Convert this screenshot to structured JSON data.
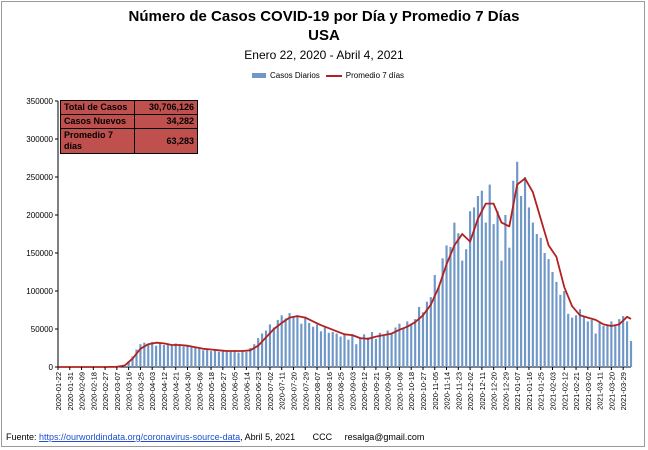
{
  "title": "Número de  Casos  COVID-19 por Día y Promedio 7 Días",
  "title2": "USA",
  "subtitle": "Enero 22, 2020 - Abril 4, 2021",
  "legend": {
    "bars": "Casos Diarios",
    "line": "Promedio 7 días"
  },
  "stats": [
    {
      "label": "Total de Casos",
      "value": "30,706,126"
    },
    {
      "label": "Casos Nuevos",
      "value": "34,282"
    },
    {
      "label": "Promedio 7 días",
      "value": "63,283"
    }
  ],
  "footer": {
    "prefix": "Fuente: ",
    "link": "https://ourworldindata.org/coronavirus-source-data",
    "suffix": ", Abril 5, 2021       CCC     resalga@gmail.com"
  },
  "colors": {
    "bars": "#6f98c8",
    "line": "#b32020",
    "stats_bg": "#c0504d"
  },
  "chart_data": {
    "type": "bar",
    "ylim": [
      0,
      350000
    ],
    "yticks": [
      "0",
      "50000",
      "100000",
      "150000",
      "200000",
      "250000",
      "300000",
      "350000"
    ],
    "grid": false,
    "legend_position": "top",
    "x_tick_labels": [
      "2020-01-22",
      "2020-01-31",
      "2020-02-09",
      "2020-02-18",
      "2020-02-27",
      "2020-03-07",
      "2020-03-16",
      "2020-03-25",
      "2020-04-03",
      "2020-04-12",
      "2020-04-21",
      "2020-04-30",
      "2020-05-09",
      "2020-05-18",
      "2020-05-27",
      "2020-06-05",
      "2020-06-14",
      "2020-06-23",
      "2020-07-02",
      "2020-07-11",
      "2020-07-20",
      "2020-07-29",
      "2020-08-07",
      "2020-08-16",
      "2020-08-25",
      "2020-09-03",
      "2020-09-12",
      "2020-09-21",
      "2020-09-30",
      "2020-10-09",
      "2020-10-18",
      "2020-10-27",
      "2020-11-05",
      "2020-11-14",
      "2020-11-23",
      "2020-12-02",
      "2020-12-11",
      "2020-12-20",
      "2020-12-29",
      "2021-01-07",
      "2021-01-16",
      "2021-01-25",
      "2021-02-03",
      "2021-02-12",
      "2021-02-21",
      "2021-03-02",
      "2021-03-11",
      "2021-03-20",
      "2021-03-29"
    ],
    "series": [
      {
        "name": "Casos Diarios",
        "kind": "bar",
        "sampled_every_days": 3,
        "x": [
          "2020-01-22",
          "2020-02-27",
          "2020-03-07",
          "2020-03-10",
          "2020-03-13",
          "2020-03-16",
          "2020-03-19",
          "2020-03-22",
          "2020-03-25",
          "2020-03-28",
          "2020-03-31",
          "2020-04-03",
          "2020-04-06",
          "2020-04-09",
          "2020-04-12",
          "2020-04-15",
          "2020-04-18",
          "2020-04-21",
          "2020-04-24",
          "2020-04-27",
          "2020-04-30",
          "2020-05-03",
          "2020-05-06",
          "2020-05-09",
          "2020-05-12",
          "2020-05-15",
          "2020-05-18",
          "2020-05-21",
          "2020-05-24",
          "2020-05-27",
          "2020-05-30",
          "2020-06-02",
          "2020-06-05",
          "2020-06-08",
          "2020-06-11",
          "2020-06-14",
          "2020-06-17",
          "2020-06-20",
          "2020-06-23",
          "2020-06-26",
          "2020-06-29",
          "2020-07-02",
          "2020-07-05",
          "2020-07-08",
          "2020-07-11",
          "2020-07-14",
          "2020-07-17",
          "2020-07-20",
          "2020-07-23",
          "2020-07-26",
          "2020-07-29",
          "2020-08-01",
          "2020-08-04",
          "2020-08-07",
          "2020-08-10",
          "2020-08-13",
          "2020-08-16",
          "2020-08-19",
          "2020-08-22",
          "2020-08-25",
          "2020-08-28",
          "2020-08-31",
          "2020-09-03",
          "2020-09-06",
          "2020-09-09",
          "2020-09-12",
          "2020-09-15",
          "2020-09-18",
          "2020-09-21",
          "2020-09-24",
          "2020-09-27",
          "2020-09-30",
          "2020-10-03",
          "2020-10-06",
          "2020-10-09",
          "2020-10-12",
          "2020-10-15",
          "2020-10-18",
          "2020-10-21",
          "2020-10-24",
          "2020-10-27",
          "2020-10-30",
          "2020-11-02",
          "2020-11-05",
          "2020-11-08",
          "2020-11-11",
          "2020-11-14",
          "2020-11-17",
          "2020-11-20",
          "2020-11-23",
          "2020-11-26",
          "2020-11-29",
          "2020-12-02",
          "2020-12-05",
          "2020-12-08",
          "2020-12-11",
          "2020-12-14",
          "2020-12-17",
          "2020-12-20",
          "2020-12-23",
          "2020-12-26",
          "2020-12-29",
          "2021-01-01",
          "2021-01-04",
          "2021-01-07",
          "2021-01-10",
          "2021-01-13",
          "2021-01-16",
          "2021-01-19",
          "2021-01-22",
          "2021-01-25",
          "2021-01-28",
          "2021-01-31",
          "2021-02-03",
          "2021-02-06",
          "2021-02-09",
          "2021-02-12",
          "2021-02-15",
          "2021-02-18",
          "2021-02-21",
          "2021-02-24",
          "2021-02-27",
          "2021-03-02",
          "2021-03-05",
          "2021-03-08",
          "2021-03-11",
          "2021-03-14",
          "2021-03-17",
          "2021-03-20",
          "2021-03-23",
          "2021-03-26",
          "2021-03-29",
          "2021-04-01",
          "2021-04-04"
        ],
        "values": [
          0,
          0,
          100,
          500,
          3000,
          7000,
          14000,
          23000,
          30000,
          32000,
          30000,
          33000,
          28000,
          31000,
          29000,
          30000,
          28000,
          31000,
          30000,
          27000,
          29000,
          26000,
          25000,
          24000,
          22000,
          23000,
          21000,
          22000,
          20000,
          22000,
          21000,
          20000,
          22000,
          19000,
          22000,
          20000,
          25000,
          30000,
          38000,
          44000,
          48000,
          56000,
          52000,
          62000,
          68000,
          64000,
          71000,
          65000,
          68000,
          57000,
          66000,
          58000,
          53000,
          56000,
          47000,
          52000,
          45000,
          46000,
          44000,
          40000,
          44000,
          36000,
          43000,
          30000,
          38000,
          43000,
          39000,
          46000,
          37000,
          45000,
          41000,
          48000,
          45000,
          52000,
          57000,
          51000,
          60000,
          57000,
          63000,
          79000,
          72000,
          86000,
          92000,
          121000,
          105000,
          143000,
          160000,
          158000,
          190000,
          176000,
          140000,
          155000,
          205000,
          210000,
          225000,
          232000,
          190000,
          240000,
          188000,
          205000,
          140000,
          200000,
          157000,
          245000,
          270000,
          225000,
          250000,
          210000,
          190000,
          175000,
          170000,
          150000,
          142000,
          125000,
          112000,
          95000,
          100000,
          70000,
          65000,
          68000,
          76000,
          66000,
          60000,
          62000,
          44000,
          58000,
          54000,
          55000,
          60000,
          55000,
          63000,
          67000,
          60000,
          34282
        ]
      },
      {
        "name": "Promedio 7 días",
        "kind": "line",
        "x": [
          "2020-01-22",
          "2020-02-27",
          "2020-03-07",
          "2020-03-13",
          "2020-03-19",
          "2020-03-25",
          "2020-03-31",
          "2020-04-06",
          "2020-04-12",
          "2020-04-18",
          "2020-04-24",
          "2020-04-30",
          "2020-05-06",
          "2020-05-12",
          "2020-05-18",
          "2020-05-24",
          "2020-05-30",
          "2020-06-05",
          "2020-06-11",
          "2020-06-17",
          "2020-06-23",
          "2020-06-29",
          "2020-07-05",
          "2020-07-11",
          "2020-07-17",
          "2020-07-23",
          "2020-07-29",
          "2020-08-04",
          "2020-08-10",
          "2020-08-16",
          "2020-08-22",
          "2020-08-28",
          "2020-09-03",
          "2020-09-09",
          "2020-09-15",
          "2020-09-21",
          "2020-09-27",
          "2020-10-03",
          "2020-10-09",
          "2020-10-15",
          "2020-10-21",
          "2020-10-27",
          "2020-11-02",
          "2020-11-08",
          "2020-11-14",
          "2020-11-20",
          "2020-11-26",
          "2020-12-02",
          "2020-12-08",
          "2020-12-14",
          "2020-12-20",
          "2020-12-26",
          "2021-01-01",
          "2021-01-07",
          "2021-01-13",
          "2021-01-19",
          "2021-01-25",
          "2021-01-31",
          "2021-02-06",
          "2021-02-12",
          "2021-02-18",
          "2021-02-24",
          "2021-03-02",
          "2021-03-08",
          "2021-03-14",
          "2021-03-20",
          "2021-03-26",
          "2021-04-01",
          "2021-04-04"
        ],
        "values": [
          0,
          0,
          200,
          2000,
          11000,
          24000,
          30000,
          32000,
          31000,
          29000,
          29000,
          28000,
          26000,
          24000,
          23000,
          22000,
          21000,
          21000,
          21000,
          22000,
          28000,
          39000,
          50000,
          58000,
          65000,
          67000,
          65000,
          60000,
          55000,
          51000,
          47000,
          43000,
          42000,
          38000,
          37000,
          40000,
          42000,
          44000,
          49000,
          53000,
          59000,
          68000,
          82000,
          105000,
          135000,
          160000,
          175000,
          165000,
          195000,
          215000,
          215000,
          190000,
          185000,
          240000,
          248000,
          230000,
          195000,
          160000,
          145000,
          105000,
          80000,
          68000,
          65000,
          62000,
          56000,
          54000,
          56000,
          66000,
          63283
        ]
      }
    ]
  }
}
